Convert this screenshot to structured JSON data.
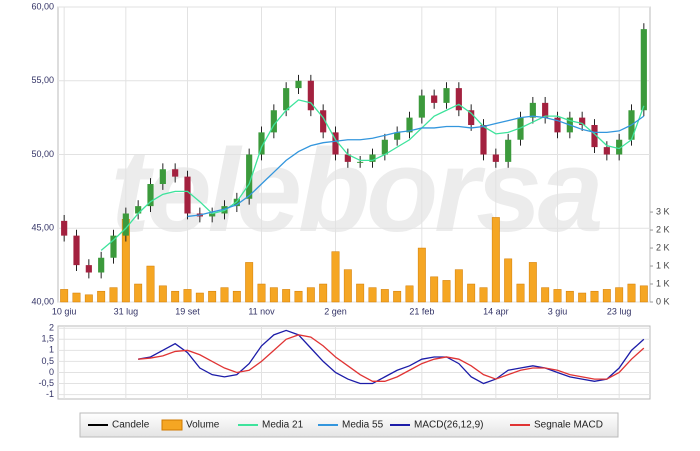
{
  "chart_data": [
    {
      "type": "candlestick",
      "watermark": "teleborsa",
      "categories": [
        "10 giu",
        null,
        null,
        null,
        null,
        "31 lug",
        null,
        null,
        null,
        null,
        "19 set",
        null,
        null,
        null,
        null,
        null,
        "11 nov",
        null,
        null,
        null,
        null,
        null,
        "2 gen",
        null,
        null,
        null,
        null,
        null,
        null,
        "21 feb",
        null,
        null,
        null,
        null,
        null,
        "14 apr",
        null,
        null,
        null,
        null,
        "3 giu",
        null,
        null,
        null,
        null,
        "23 lug",
        null,
        null
      ],
      "candles": {
        "name": "Candele",
        "color": "#000000",
        "up_color": "#3c9a3c",
        "down_color": "#a3213f",
        "open": [
          45.5,
          44.5,
          42.5,
          42,
          43,
          44.5,
          46,
          46.5,
          48,
          49,
          48.5,
          46,
          45.8,
          46,
          46.5,
          47,
          50,
          51.5,
          53,
          54.5,
          55,
          53,
          51.5,
          50,
          49.5,
          49.5,
          50,
          51,
          51.5,
          52.5,
          54,
          53.5,
          54.5,
          53,
          52,
          50,
          49.5,
          51,
          52.5,
          53.5,
          52.5,
          51.5,
          52.5,
          52,
          50.5,
          50,
          51,
          53
        ],
        "high": [
          45.9,
          44.9,
          42.9,
          43.4,
          44.9,
          46.4,
          46.9,
          48.4,
          49.4,
          49.4,
          48.9,
          46.4,
          46.4,
          46.9,
          47.4,
          50.4,
          51.9,
          53.4,
          54.9,
          55.4,
          55.4,
          53.4,
          51.9,
          50.4,
          49.9,
          50.4,
          51.4,
          51.9,
          52.9,
          54.4,
          54.4,
          54.9,
          54.9,
          53.4,
          52.4,
          50.4,
          51.4,
          52.9,
          53.9,
          53.9,
          52.9,
          52.9,
          52.9,
          52.4,
          50.9,
          51.4,
          53.4,
          58.9
        ],
        "low": [
          44.1,
          42.1,
          41.6,
          41.6,
          42.6,
          44.1,
          45.6,
          46.1,
          47.6,
          48.1,
          45.6,
          45.4,
          45.4,
          45.6,
          46.1,
          46.6,
          49.6,
          51.1,
          52.6,
          54.1,
          52.6,
          51.1,
          49.6,
          49.1,
          49.1,
          49.1,
          49.6,
          50.6,
          51.1,
          52.1,
          53.1,
          53.1,
          52.6,
          51.6,
          49.6,
          49.1,
          49.1,
          50.6,
          52.1,
          52.1,
          51.1,
          51.1,
          51.6,
          50.1,
          49.6,
          49.6,
          50.6,
          52.6
        ],
        "close": [
          44.5,
          42.5,
          42,
          43,
          44.5,
          46,
          46.5,
          48,
          49,
          48.5,
          46,
          45.8,
          46,
          46.5,
          47,
          50,
          51.5,
          53,
          54.5,
          55,
          53,
          51.5,
          50,
          49.5,
          49.5,
          50,
          51,
          51.5,
          52.5,
          54,
          53.5,
          54.5,
          53,
          52,
          50,
          49.5,
          51,
          52.5,
          53.5,
          52.5,
          51.5,
          52.5,
          52,
          50.5,
          50,
          51,
          53,
          58.5
        ]
      },
      "volume": {
        "name": "Volume",
        "color": "#f5a623",
        "axis": "y2",
        "values": [
          350,
          250,
          200,
          300,
          400,
          2300,
          500,
          1000,
          450,
          300,
          350,
          250,
          300,
          400,
          300,
          1100,
          500,
          400,
          350,
          300,
          400,
          500,
          1400,
          900,
          500,
          400,
          350,
          300,
          450,
          1500,
          700,
          600,
          900,
          500,
          400,
          2350,
          1200,
          500,
          1100,
          400,
          350,
          300,
          250,
          300,
          350,
          400,
          500,
          450
        ]
      },
      "series": [
        {
          "name": "Media 21",
          "color": "#3ee39c",
          "values": [
            null,
            null,
            null,
            43.5,
            44.2,
            45,
            46,
            46.8,
            47.3,
            47.5,
            47.5,
            46.8,
            46,
            46.2,
            46.8,
            48,
            50.5,
            52,
            53,
            53.7,
            53.5,
            52.5,
            51,
            50,
            49.6,
            49.6,
            50,
            50.5,
            51,
            51.8,
            52.6,
            53,
            53.4,
            52.8,
            51.9,
            51.4,
            51.5,
            51.8,
            52.2,
            52.6,
            52.6,
            52.3,
            52.1,
            51.4,
            50.6,
            50.4,
            51,
            53.3
          ]
        },
        {
          "name": "Media 55",
          "color": "#3396dd",
          "values": [
            null,
            null,
            null,
            null,
            null,
            null,
            null,
            null,
            null,
            null,
            45.8,
            45.9,
            46.1,
            46.3,
            46.6,
            47.2,
            48,
            48.8,
            49.6,
            50.2,
            50.6,
            50.8,
            50.9,
            51,
            51,
            51.1,
            51.3,
            51.5,
            51.6,
            51.8,
            51.8,
            51.9,
            51.9,
            51.8,
            51.9,
            52.1,
            52.3,
            52.5,
            52.6,
            52.5,
            52.3,
            52,
            51.7,
            51.5,
            51.5,
            51.6,
            52,
            52.6
          ]
        }
      ],
      "ylim": [
        40,
        60
      ],
      "yticks": [
        {
          "value": 40,
          "label": "40,00"
        },
        {
          "value": 45,
          "label": "45,00"
        },
        {
          "value": 50,
          "label": "50,00"
        },
        {
          "value": 55,
          "label": "55,00"
        },
        {
          "value": 60,
          "label": "60,00"
        }
      ],
      "y2lim": [
        0,
        8200
      ],
      "y2ticks": [
        {
          "value": 0,
          "label": "0 K"
        },
        {
          "value": 500,
          "label": "1 K"
        },
        {
          "value": 1000,
          "label": "1 K"
        },
        {
          "value": 1500,
          "label": "2 K"
        },
        {
          "value": 2000,
          "label": "2 K"
        },
        {
          "value": 2500,
          "label": "3 K"
        }
      ],
      "grid": true
    },
    {
      "type": "line",
      "series": [
        {
          "name": "MACD(26,12,9)",
          "color": "#1c1ca8",
          "values": [
            null,
            null,
            null,
            null,
            null,
            null,
            0.6,
            0.7,
            1.0,
            1.3,
            0.9,
            0.2,
            -0.1,
            -0.2,
            -0.1,
            0.4,
            1.2,
            1.7,
            1.9,
            1.7,
            1.1,
            0.5,
            0,
            -0.3,
            -0.5,
            -0.5,
            -0.2,
            0.1,
            0.3,
            0.6,
            0.7,
            0.7,
            0.4,
            -0.2,
            -0.5,
            -0.3,
            0.1,
            0.2,
            0.3,
            0.2,
            0,
            -0.2,
            -0.3,
            -0.4,
            -0.3,
            0.2,
            1.0,
            1.5
          ]
        },
        {
          "name": "Segnale MACD",
          "color": "#e03434",
          "values": [
            null,
            null,
            null,
            null,
            null,
            null,
            0.6,
            0.65,
            0.75,
            0.95,
            1.0,
            0.8,
            0.5,
            0.2,
            0,
            0.1,
            0.5,
            1.0,
            1.5,
            1.7,
            1.6,
            1.2,
            0.7,
            0.3,
            -0.1,
            -0.4,
            -0.4,
            -0.2,
            0.1,
            0.4,
            0.6,
            0.7,
            0.6,
            0.3,
            -0.1,
            -0.3,
            -0.1,
            0.1,
            0.2,
            0.2,
            0.1,
            -0.1,
            -0.2,
            -0.3,
            -0.3,
            0,
            0.6,
            1.1
          ]
        }
      ],
      "ylim": [
        -1.2,
        2.1
      ],
      "yticks": [
        2,
        {
          "value": 1.5,
          "label": "1,5"
        },
        1,
        {
          "value": 0.5,
          "label": "0,5"
        },
        0,
        {
          "value": -0.5,
          "label": "-0,5"
        },
        -1
      ],
      "grid": true
    }
  ]
}
